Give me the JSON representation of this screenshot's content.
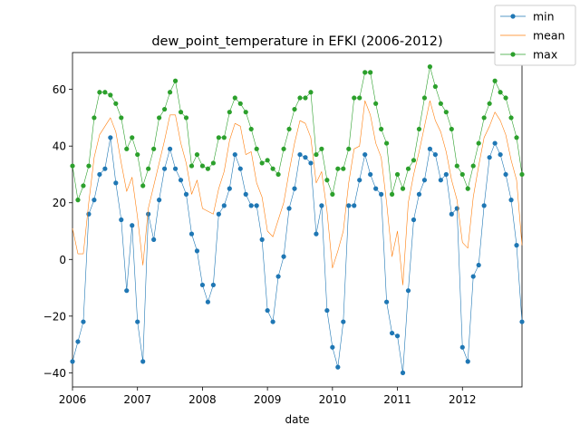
{
  "chart_data": {
    "type": "line",
    "title": "dew_point_temperature in EFKI (2006-2012)",
    "xlabel": "date",
    "ylabel": "",
    "x_start": "2006-01",
    "x_step": "month",
    "xlim": [
      "2006-01",
      "2012-12"
    ],
    "ylim": [
      -45,
      73
    ],
    "x_ticks": [
      {
        "date": "2006-01",
        "label": "2006"
      },
      {
        "date": "2007-01",
        "label": "2007"
      },
      {
        "date": "2008-01",
        "label": "2008"
      },
      {
        "date": "2009-01",
        "label": "2009"
      },
      {
        "date": "2010-01",
        "label": "2010"
      },
      {
        "date": "2011-01",
        "label": "2011"
      },
      {
        "date": "2012-01",
        "label": "2012"
      }
    ],
    "y_ticks": [
      -40,
      -20,
      0,
      20,
      40,
      60
    ],
    "grid": false,
    "legend_position": "top-right",
    "series": [
      {
        "name": "min",
        "color": "#1f77b4",
        "marker": "circle",
        "values": [
          -36,
          -29,
          -22,
          16,
          21,
          30,
          32,
          43,
          27,
          14,
          -11,
          12,
          -22,
          -36,
          16,
          7,
          21,
          32,
          39,
          32,
          28,
          23,
          9,
          3,
          -9,
          -15,
          -9,
          16,
          19,
          25,
          37,
          32,
          23,
          19,
          19,
          7,
          -18,
          -22,
          -6,
          1,
          18,
          25,
          37,
          36,
          34,
          9,
          19,
          -18,
          -31,
          -38,
          -22,
          19,
          19,
          28,
          37,
          30,
          25,
          23,
          -15,
          -26,
          -27,
          -40,
          -11,
          14,
          23,
          28,
          39,
          37,
          28,
          30,
          16,
          18,
          -31,
          -36,
          -6,
          -2,
          19,
          36,
          41,
          37,
          30,
          21,
          5,
          -22
        ]
      },
      {
        "name": "mean",
        "color": "#ff7f0e",
        "marker": "none",
        "values": [
          11,
          2,
          2,
          20,
          36,
          44,
          47,
          50,
          45,
          34,
          24,
          29,
          15,
          -2,
          18,
          26,
          34,
          42,
          51,
          51,
          41,
          34,
          23,
          28,
          18,
          17,
          16,
          25,
          31,
          42,
          48,
          47,
          37,
          38,
          27,
          22,
          10,
          8,
          14,
          20,
          31,
          41,
          49,
          48,
          43,
          27,
          31,
          17,
          -3,
          3,
          10,
          27,
          39,
          40,
          56,
          51,
          41,
          36,
          20,
          1,
          10,
          -9,
          20,
          30,
          38,
          47,
          56,
          49,
          45,
          38,
          28,
          21,
          6,
          4,
          22,
          33,
          43,
          47,
          52,
          49,
          44,
          35,
          28,
          5
        ]
      },
      {
        "name": "max",
        "color": "#2ca02c",
        "marker": "circle",
        "values": [
          33,
          21,
          26,
          33,
          50,
          59,
          59,
          58,
          55,
          50,
          39,
          43,
          37,
          26,
          32,
          39,
          50,
          53,
          59,
          63,
          52,
          50,
          33,
          37,
          33,
          32,
          34,
          43,
          43,
          52,
          57,
          55,
          52,
          46,
          39,
          34,
          35,
          32,
          30,
          39,
          46,
          53,
          57,
          57,
          59,
          37,
          39,
          28,
          23,
          32,
          32,
          39,
          57,
          57,
          66,
          66,
          55,
          46,
          41,
          23,
          30,
          25,
          32,
          35,
          46,
          57,
          68,
          61,
          55,
          52,
          46,
          33,
          30,
          25,
          33,
          41,
          50,
          55,
          63,
          59,
          57,
          50,
          43,
          30
        ]
      }
    ]
  }
}
